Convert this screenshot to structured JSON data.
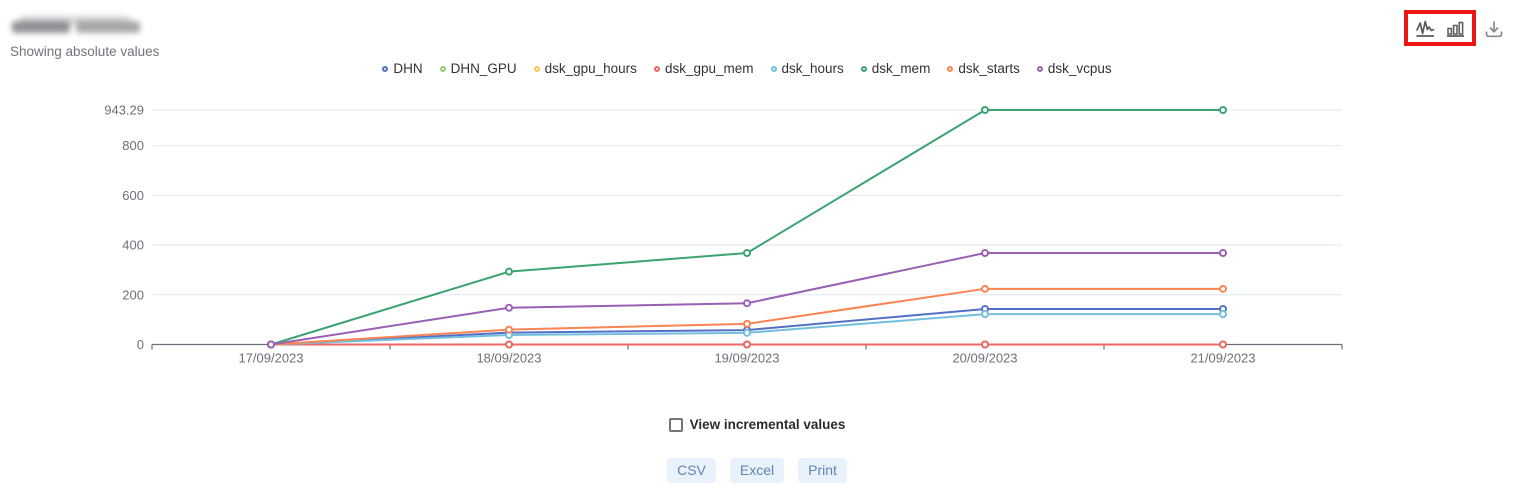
{
  "header": {
    "title_redacted": true,
    "subtitle": "Showing absolute values"
  },
  "toolbar": {
    "icons": [
      "line-chart-icon",
      "bar-chart-icon",
      "download-icon"
    ],
    "annotation_box_color": "#ec1616"
  },
  "chart_data": {
    "type": "line",
    "x": [
      "17/09/2023",
      "18/09/2023",
      "19/09/2023",
      "20/09/2023",
      "21/09/2023"
    ],
    "series": [
      {
        "name": "DHN",
        "color": "#5470c6",
        "values": [
          0,
          48,
          58,
          143,
          143
        ]
      },
      {
        "name": "DHN_GPU",
        "color": "#91cc75",
        "values": [
          0,
          0,
          0,
          0,
          0
        ]
      },
      {
        "name": "dsk_gpu_hours",
        "color": "#fac858",
        "values": [
          0,
          0,
          0,
          0,
          0
        ]
      },
      {
        "name": "dsk_gpu_mem",
        "color": "#ee6666",
        "values": [
          0,
          0,
          0,
          0,
          0
        ]
      },
      {
        "name": "dsk_hours",
        "color": "#73c0de",
        "values": [
          0,
          38,
          47,
          122,
          122
        ]
      },
      {
        "name": "dsk_mem",
        "color": "#3ba272",
        "values": [
          0,
          293,
          368,
          943.29,
          943.29
        ]
      },
      {
        "name": "dsk_starts",
        "color": "#fc8452",
        "values": [
          0,
          60,
          83,
          224,
          224
        ]
      },
      {
        "name": "dsk_vcpus",
        "color": "#9a60b4",
        "values": [
          0,
          148,
          166,
          368,
          368
        ]
      }
    ],
    "y_ticks": [
      0,
      200,
      400,
      600,
      800,
      943.29
    ],
    "ylim": [
      0,
      943.29
    ],
    "grid": true,
    "legend_position": "top",
    "marker": "empty-circle",
    "axis_label_color": "#6E7079",
    "gridline_color": "#E0E6F1"
  },
  "footer": {
    "checkbox_label": "View incremental values",
    "checkbox_checked": false,
    "export_buttons": [
      "CSV",
      "Excel",
      "Print"
    ]
  }
}
